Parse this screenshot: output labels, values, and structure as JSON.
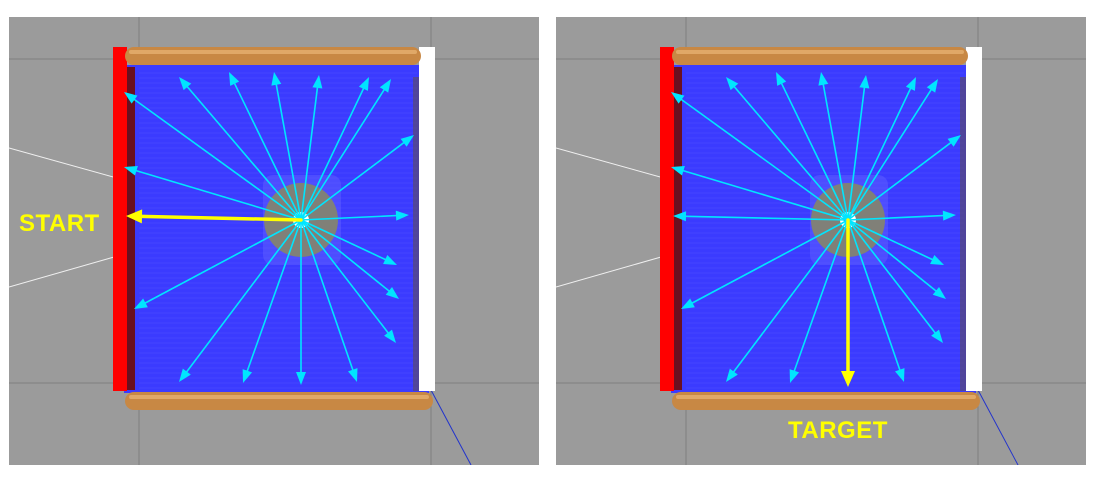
{
  "panels": [
    {
      "id": "left",
      "label": "START",
      "highlight_direction": "left"
    },
    {
      "id": "right",
      "label": "TARGET",
      "highlight_direction": "down"
    }
  ],
  "colors": {
    "background": "#9b9b9b",
    "grid_line": "#7f7f7f",
    "floor": "#3b3bff",
    "wall_red": "#ff0000",
    "wall_white": "#ffffff",
    "wall_wood": "#c88844",
    "ray": "#00e5ff",
    "highlight": "#ffff00",
    "robot_ring": "#8a8a60"
  },
  "icons": {
    "robot": "robot-icon",
    "ray_arrow": "arrow-icon"
  }
}
